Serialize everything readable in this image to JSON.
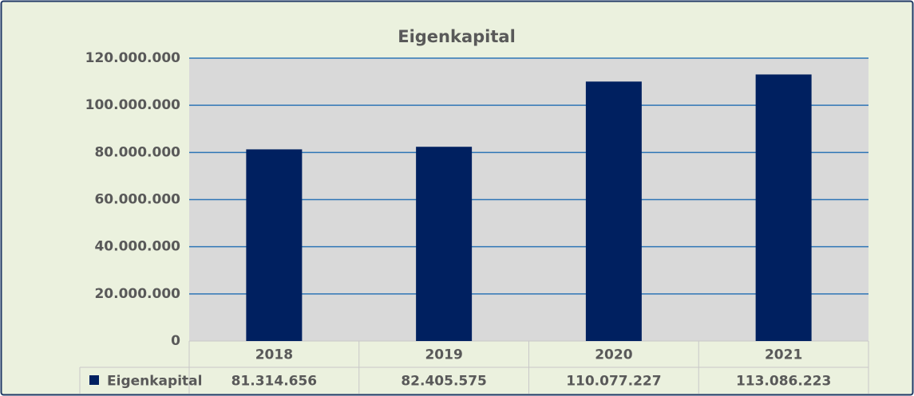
{
  "chart_data": {
    "type": "bar",
    "title": "Eigenkapital",
    "categories": [
      "2018",
      "2019",
      "2020",
      "2021"
    ],
    "series": [
      {
        "name": "Eigenkapital",
        "color": "#002060",
        "values": [
          81314656,
          82405575,
          110077227,
          113086223
        ],
        "value_labels": [
          "81.314.656",
          "82.405.575",
          "110.077.227",
          "113.086.223"
        ]
      }
    ],
    "ylim": [
      0,
      120000000
    ],
    "yticks": [
      0,
      {
        "value": 20000000,
        "label": "20.000.000"
      },
      {
        "value": 40000000,
        "label": "40.000.000"
      },
      {
        "value": 60000000,
        "label": "60.000.000"
      },
      {
        "value": 80000000,
        "label": "80.000.000"
      },
      {
        "value": 100000000,
        "label": "100.000.000"
      },
      {
        "value": 120000000,
        "label": "120.000.000"
      }
    ],
    "grid": true
  }
}
